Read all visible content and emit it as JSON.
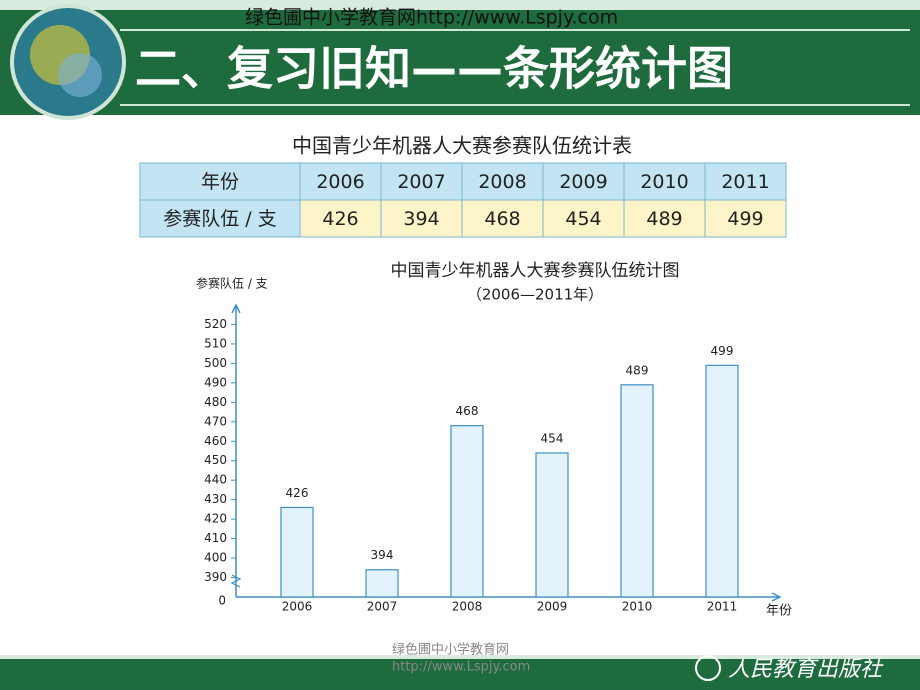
{
  "header": {
    "watermark": "绿色圃中小学教育网http://www.Lspjy.com",
    "title": "二、复习旧知——条形统计图"
  },
  "table": {
    "title": "中国青少年机器人大赛参赛队伍统计表",
    "rows": [
      [
        "年份",
        "2006",
        "2007",
        "2008",
        "2009",
        "2010",
        "2011"
      ],
      [
        "参赛队伍 / 支",
        426,
        394,
        468,
        454,
        489,
        499
      ]
    ]
  },
  "chart_data": {
    "type": "bar",
    "title": "中国青少年机器人大赛参赛队伍统计图",
    "subtitle": "（2006—2011年）",
    "y_label": "参赛队伍 / 支",
    "x_label": "年份",
    "categories": [
      "2006",
      "2007",
      "2008",
      "2009",
      "2010",
      "2011"
    ],
    "values": [
      426,
      394,
      468,
      454,
      489,
      499
    ],
    "color": "#e3f2fb",
    "edge_color": "#3d8fc4",
    "ylim": [
      380,
      530
    ],
    "yticks": [
      390,
      400,
      410,
      420,
      430,
      440,
      450,
      460,
      470,
      480,
      490,
      500,
      510,
      520
    ],
    "y_origin_label": "0",
    "grid": false
  },
  "footer": {
    "watermark": "绿色圃中小学教育网",
    "url": "http://www.Lspjy.com",
    "publisher": "人民教育出版社"
  }
}
